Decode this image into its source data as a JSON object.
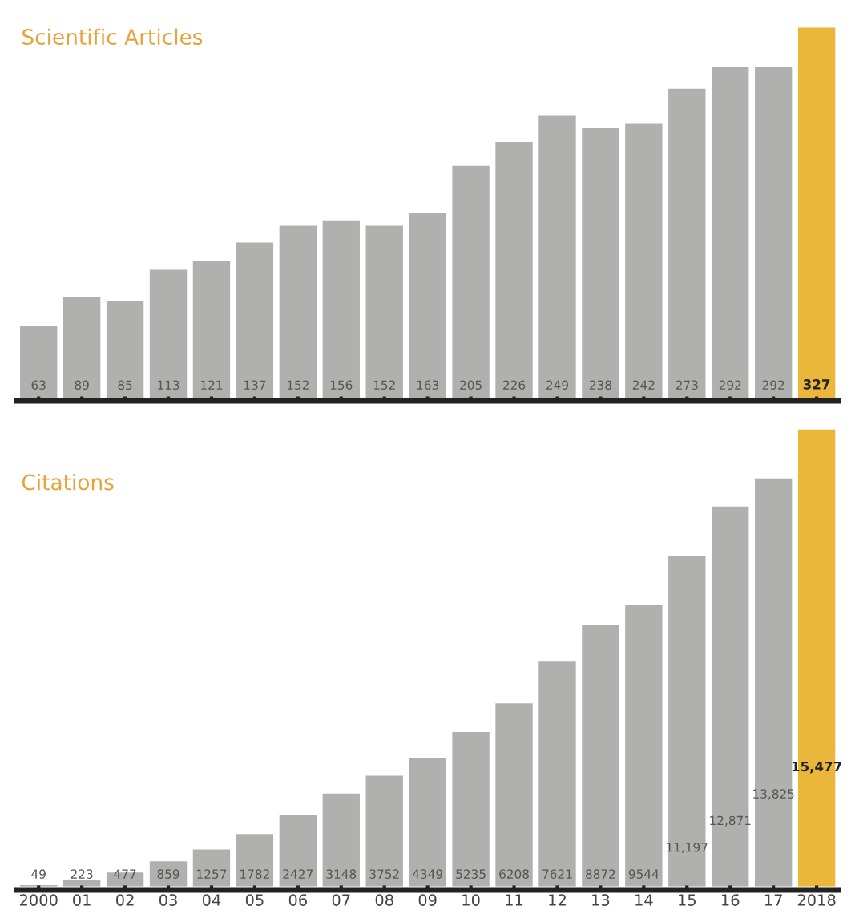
{
  "chart_data": [
    {
      "type": "bar",
      "title": "Scientific Articles",
      "categories": [
        "2000",
        "01",
        "02",
        "03",
        "04",
        "05",
        "06",
        "07",
        "08",
        "09",
        "10",
        "11",
        "12",
        "13",
        "14",
        "15",
        "16",
        "17",
        "2018"
      ],
      "values": [
        63,
        89,
        85,
        113,
        121,
        137,
        152,
        156,
        152,
        163,
        205,
        226,
        249,
        238,
        242,
        273,
        292,
        292,
        327
      ],
      "colors": [
        "#b0b1ae",
        "#b0b1ae",
        "#b0b1ae",
        "#b0b1ae",
        "#b0b1ae",
        "#b0b1ae",
        "#b0b1ae",
        "#b0b1ae",
        "#b0b1ae",
        "#b0b1ae",
        "#b0b1ae",
        "#b0b1ae",
        "#b0b1ae",
        "#b0b1ae",
        "#b0b1ae",
        "#b0b1ae",
        "#b0b1ae",
        "#b0b1ae",
        "#ebb73a"
      ],
      "data_labels": true,
      "tick_labels": false,
      "grid": false,
      "legend": false
    },
    {
      "type": "bar",
      "title": "Citations",
      "categories": [
        "2000",
        "01",
        "02",
        "03",
        "04",
        "05",
        "06",
        "07",
        "08",
        "09",
        "10",
        "11",
        "12",
        "13",
        "14",
        "15",
        "16",
        "17",
        "2018"
      ],
      "values": [
        49,
        223,
        477,
        859,
        1257,
        1782,
        2427,
        3148,
        3752,
        4349,
        5235,
        6208,
        7621,
        8872,
        9544,
        11197,
        12871,
        13825,
        15477
      ],
      "value_labels": [
        "49",
        "223",
        "477",
        "859",
        "1257",
        "1782",
        "2427",
        "3148",
        "3752",
        "4349",
        "5235",
        "6208",
        "7621",
        "8872",
        "9544",
        "11,197",
        "12,871",
        "13,825",
        "15,477"
      ],
      "colors": [
        "#b0b1ae",
        "#b0b1ae",
        "#b0b1ae",
        "#b0b1ae",
        "#b0b1ae",
        "#b0b1ae",
        "#b0b1ae",
        "#b0b1ae",
        "#b0b1ae",
        "#b0b1ae",
        "#b0b1ae",
        "#b0b1ae",
        "#b0b1ae",
        "#b0b1ae",
        "#b0b1ae",
        "#b0b1ae",
        "#b0b1ae",
        "#b0b1ae",
        "#ebb73a"
      ],
      "tick_labels": "x",
      "grid": false,
      "legend": false
    }
  ]
}
